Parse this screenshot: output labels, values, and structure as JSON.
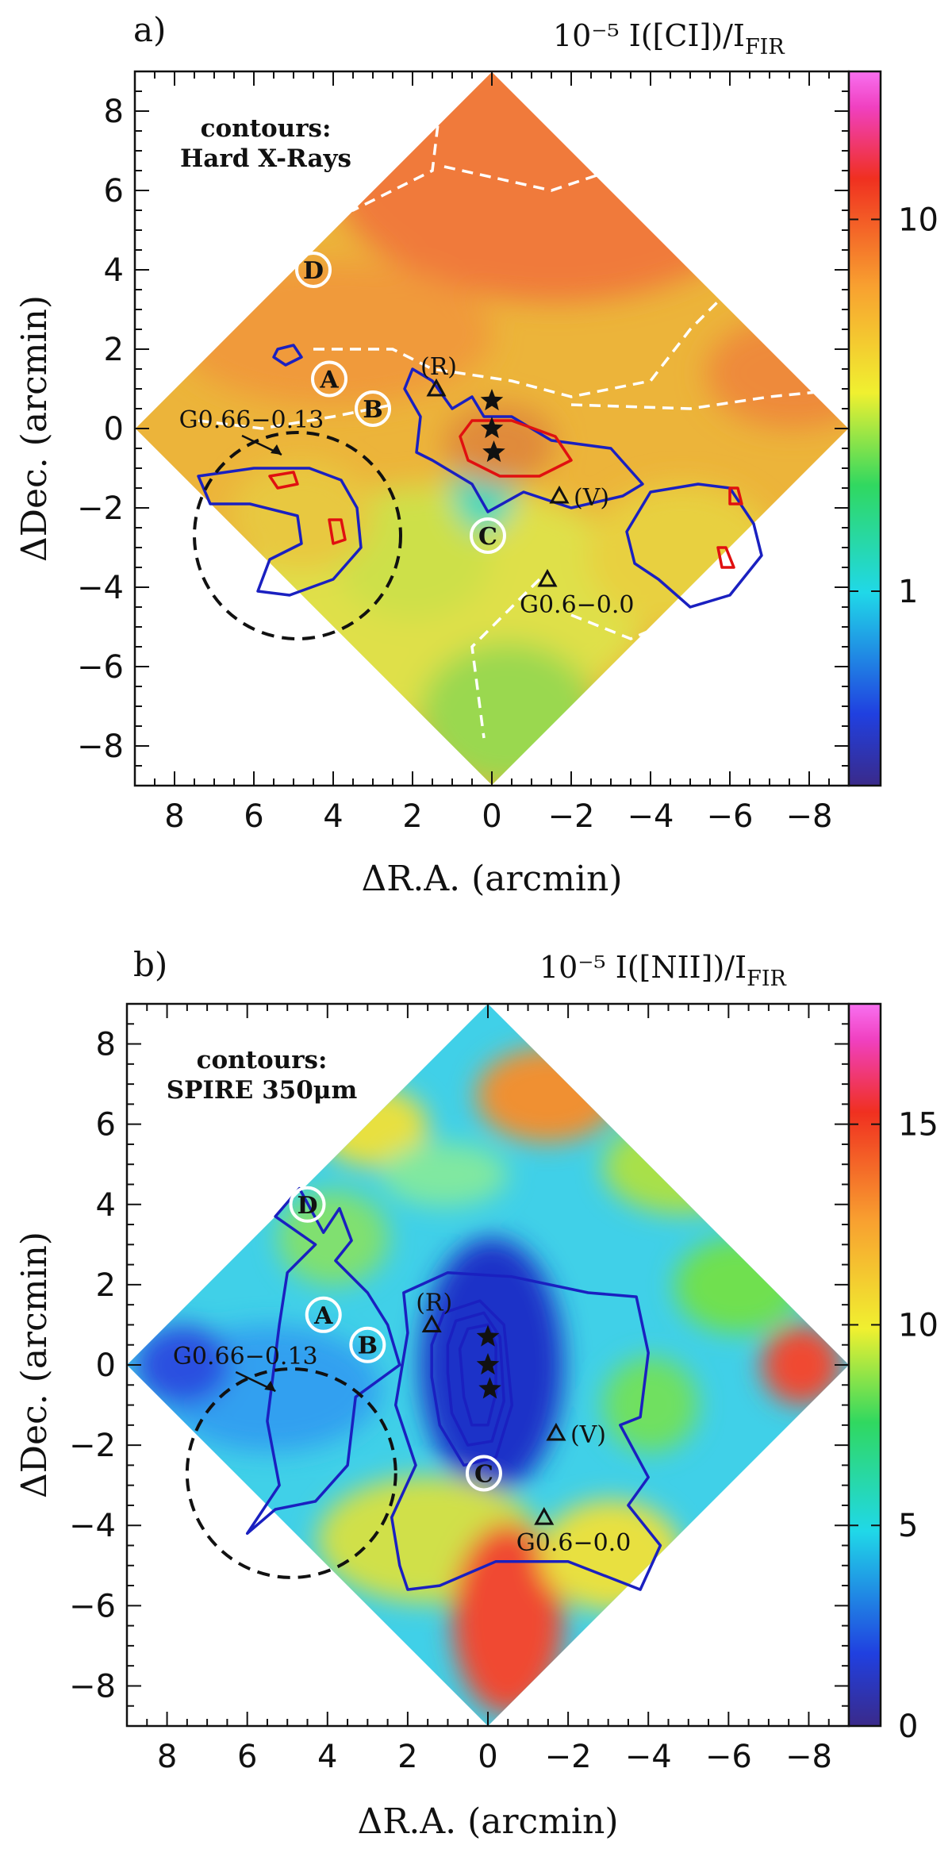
{
  "chart_data": [
    {
      "type": "heatmap",
      "panel_label": "a)",
      "colorbar_title": "10⁻⁵ I([CI])/I",
      "colorbar_title_sub": "FIR",
      "colorbar_scale": "log",
      "colorbar_range": [
        0.3,
        25
      ],
      "colorbar_ticks": [
        1,
        10
      ],
      "colorbar_tick_labels": [
        "1",
        "10"
      ],
      "xlabel": "ΔR.A. (arcmin)",
      "ylabel": "ΔDec. (arcmin)",
      "xlim": [
        9,
        -9
      ],
      "ylim": [
        -9,
        9
      ],
      "xticks": [
        8,
        6,
        4,
        2,
        0,
        -2,
        -4,
        -6,
        -8
      ],
      "xtick_labels": [
        "8",
        "6",
        "4",
        "2",
        "0",
        "−2",
        "−4",
        "−6",
        "−8"
      ],
      "yticks": [
        -8,
        -6,
        -4,
        -2,
        0,
        2,
        4,
        6,
        8
      ],
      "ytick_labels": [
        "−8",
        "−6",
        "−4",
        "−2",
        "0",
        "2",
        "4",
        "6",
        "8"
      ],
      "map_extent": {
        "center": [
          0,
          0
        ],
        "half_diagonal_arcmin": 9
      },
      "contour_note_line1": "contours:",
      "contour_note_line2": "Hard X-Rays",
      "circled_positions": [
        {
          "label": "D",
          "x": 4.5,
          "y": 4.0
        },
        {
          "label": "A",
          "x": 4.1,
          "y": 1.25
        },
        {
          "label": "B",
          "x": 3.0,
          "y": 0.5
        },
        {
          "label": "C",
          "x": 0.1,
          "y": -2.7
        }
      ],
      "stars": [
        {
          "x": 0.0,
          "y": 0.7
        },
        {
          "x": 0.0,
          "y": 0.0
        },
        {
          "x": -0.05,
          "y": -0.6
        }
      ],
      "triangles": [
        {
          "label": "(R)",
          "x": 1.4,
          "y": 1.0
        },
        {
          "label": "(V)",
          "x": -1.7,
          "y": -1.7
        },
        {
          "label": "G0.6−0.0",
          "x": -1.4,
          "y": -3.8
        }
      ],
      "circle_region": {
        "label": "G0.66−0.13",
        "center": [
          4.9,
          -2.7
        ],
        "radius_arcmin": 2.6
      },
      "blue_contours": [
        [
          [
            2.0,
            1.5
          ],
          [
            1.5,
            1.2
          ],
          [
            1.0,
            0.5
          ],
          [
            0.5,
            0.8
          ],
          [
            0.2,
            0.3
          ],
          [
            -0.5,
            0.3
          ],
          [
            -1.5,
            -0.3
          ],
          [
            -3.0,
            -0.5
          ],
          [
            -3.8,
            -1.4
          ],
          [
            -3.3,
            -1.7
          ],
          [
            -2.0,
            -2.0
          ],
          [
            -0.8,
            -1.6
          ],
          [
            0.1,
            -2.1
          ],
          [
            0.5,
            -1.4
          ],
          [
            1.5,
            -0.8
          ],
          [
            1.9,
            -0.6
          ],
          [
            1.8,
            0.3
          ],
          [
            2.2,
            1.0
          ]
        ],
        [
          [
            7.4,
            -1.2
          ],
          [
            6.0,
            -1.0
          ],
          [
            4.6,
            -1.0
          ],
          [
            3.8,
            -1.3
          ],
          [
            3.4,
            -2.0
          ],
          [
            3.3,
            -3.0
          ],
          [
            4.0,
            -3.8
          ],
          [
            5.1,
            -4.2
          ],
          [
            5.9,
            -4.1
          ],
          [
            5.6,
            -3.3
          ],
          [
            4.8,
            -2.9
          ],
          [
            4.9,
            -2.2
          ],
          [
            6.1,
            -1.9
          ],
          [
            7.1,
            -1.9
          ]
        ],
        [
          [
            -3.4,
            -2.6
          ],
          [
            -4.0,
            -1.6
          ],
          [
            -5.2,
            -1.4
          ],
          [
            -6.0,
            -1.5
          ],
          [
            -6.6,
            -2.4
          ],
          [
            -6.8,
            -3.2
          ],
          [
            -6.0,
            -4.2
          ],
          [
            -5.0,
            -4.5
          ],
          [
            -4.2,
            -3.8
          ],
          [
            -3.6,
            -3.4
          ]
        ],
        [
          [
            5.4,
            2.0
          ],
          [
            5.0,
            2.1
          ],
          [
            4.8,
            1.8
          ],
          [
            5.2,
            1.6
          ],
          [
            5.5,
            1.8
          ]
        ]
      ],
      "red_contours": [
        [
          [
            0.5,
            0.2
          ],
          [
            -0.5,
            0.2
          ],
          [
            -1.6,
            -0.2
          ],
          [
            -2.0,
            -0.8
          ],
          [
            -1.2,
            -1.2
          ],
          [
            -0.2,
            -1.2
          ],
          [
            0.6,
            -0.8
          ],
          [
            0.8,
            -0.2
          ]
        ],
        [
          [
            5.6,
            -1.2
          ],
          [
            5.0,
            -1.1
          ],
          [
            4.9,
            -1.4
          ],
          [
            5.4,
            -1.5
          ]
        ],
        [
          [
            4.1,
            -2.3
          ],
          [
            3.8,
            -2.3
          ],
          [
            3.7,
            -2.8
          ],
          [
            4.0,
            -2.9
          ]
        ],
        [
          [
            -6.0,
            -1.5
          ],
          [
            -6.2,
            -1.5
          ],
          [
            -6.3,
            -1.9
          ],
          [
            -6.0,
            -1.9
          ]
        ],
        [
          [
            -5.7,
            -3.0
          ],
          [
            -5.9,
            -3.0
          ],
          [
            -6.1,
            -3.5
          ],
          [
            -5.8,
            -3.5
          ]
        ]
      ],
      "white_dashed_boundaries": [
        [
          [
            1.2,
            9.0
          ],
          [
            1.5,
            6.5
          ],
          [
            3.5,
            5.5
          ],
          [
            6.0,
            5.0
          ]
        ],
        [
          [
            1.2,
            6.6
          ],
          [
            -1.5,
            6.0
          ],
          [
            -3.0,
            6.5
          ],
          [
            -4.0,
            8.0
          ]
        ],
        [
          [
            4.5,
            2.0
          ],
          [
            2.5,
            2.0
          ],
          [
            1.5,
            1.5
          ],
          [
            -0.5,
            1.2
          ],
          [
            -2.0,
            0.8
          ],
          [
            -4.0,
            1.2
          ],
          [
            -5.0,
            2.5
          ],
          [
            -6.0,
            3.5
          ]
        ],
        [
          [
            -2.0,
            0.6
          ],
          [
            -5.0,
            0.5
          ],
          [
            -7.0,
            0.8
          ],
          [
            -9.0,
            1.0
          ]
        ],
        [
          [
            7.4,
            0.2
          ],
          [
            5.8,
            0.0
          ],
          [
            4.0,
            0.3
          ],
          [
            2.5,
            0.6
          ]
        ],
        [
          [
            -1.2,
            -3.8
          ],
          [
            -0.5,
            -4.5
          ],
          [
            0.5,
            -5.5
          ],
          [
            0.2,
            -7.8
          ]
        ],
        [
          [
            -2.0,
            -4.7
          ],
          [
            -3.5,
            -5.3
          ],
          [
            -4.2,
            -5.0
          ]
        ]
      ]
    },
    {
      "type": "heatmap",
      "panel_label": "b)",
      "colorbar_title": "10⁻⁵ I([NII])/I",
      "colorbar_title_sub": "FIR",
      "colorbar_scale": "linear",
      "colorbar_range": [
        0,
        18
      ],
      "colorbar_ticks": [
        0,
        5,
        10,
        15
      ],
      "colorbar_tick_labels": [
        "0",
        "5",
        "10",
        "15"
      ],
      "xlabel": "ΔR.A. (arcmin)",
      "ylabel": "ΔDec. (arcmin)",
      "xlim": [
        9,
        -9
      ],
      "ylim": [
        -9,
        9
      ],
      "xticks": [
        8,
        6,
        4,
        2,
        0,
        -2,
        -4,
        -6,
        -8
      ],
      "xtick_labels": [
        "8",
        "6",
        "4",
        "2",
        "0",
        "−2",
        "−4",
        "−6",
        "−8"
      ],
      "yticks": [
        -8,
        -6,
        -4,
        -2,
        0,
        2,
        4,
        6,
        8
      ],
      "ytick_labels": [
        "−8",
        "−6",
        "−4",
        "−2",
        "0",
        "2",
        "4",
        "6",
        "8"
      ],
      "map_extent": {
        "center": [
          0,
          0
        ],
        "half_diagonal_arcmin": 9
      },
      "contour_note_line1": "contours:",
      "contour_note_line2": "SPIRE 350μm",
      "circled_positions": [
        {
          "label": "D",
          "x": 4.5,
          "y": 4.0
        },
        {
          "label": "A",
          "x": 4.1,
          "y": 1.25
        },
        {
          "label": "B",
          "x": 3.0,
          "y": 0.5
        },
        {
          "label": "C",
          "x": 0.1,
          "y": -2.7
        }
      ],
      "stars": [
        {
          "x": 0.0,
          "y": 0.7
        },
        {
          "x": 0.0,
          "y": 0.0
        },
        {
          "x": -0.05,
          "y": -0.6
        }
      ],
      "triangles": [
        {
          "label": "(R)",
          "x": 1.4,
          "y": 1.0
        },
        {
          "label": "(V)",
          "x": -1.7,
          "y": -1.7
        },
        {
          "label": "G0.6−0.0",
          "x": -1.4,
          "y": -3.8
        }
      ],
      "circle_region": {
        "label": "G0.66−0.13",
        "center": [
          4.9,
          -2.7
        ],
        "radius_arcmin": 2.6
      },
      "blue_contours": [
        [
          [
            6.0,
            -4.2
          ],
          [
            5.2,
            -3.0
          ],
          [
            5.5,
            -1.4
          ],
          [
            5.2,
            1.0
          ],
          [
            5.0,
            2.3
          ],
          [
            4.3,
            3.0
          ],
          [
            5.3,
            3.7
          ],
          [
            4.7,
            4.4
          ],
          [
            4.1,
            3.3
          ],
          [
            3.7,
            3.9
          ],
          [
            3.4,
            3.1
          ],
          [
            3.8,
            2.6
          ],
          [
            3.0,
            1.8
          ],
          [
            2.5,
            1.0
          ],
          [
            2.2,
            0.0
          ],
          [
            3.3,
            -0.8
          ],
          [
            3.5,
            -2.5
          ],
          [
            4.3,
            -3.4
          ],
          [
            5.3,
            -3.6
          ]
        ],
        [
          [
            2.1,
            1.8
          ],
          [
            1.0,
            2.3
          ],
          [
            -0.6,
            2.2
          ],
          [
            -2.5,
            1.8
          ],
          [
            -3.7,
            1.7
          ],
          [
            -4.0,
            0.3
          ],
          [
            -3.8,
            -1.3
          ],
          [
            -3.3,
            -1.5
          ],
          [
            -4.0,
            -2.8
          ],
          [
            -3.5,
            -3.5
          ],
          [
            -4.3,
            -4.5
          ],
          [
            -3.8,
            -5.6
          ],
          [
            -2.0,
            -4.9
          ],
          [
            -0.2,
            -4.9
          ],
          [
            1.2,
            -5.5
          ],
          [
            2.0,
            -5.6
          ],
          [
            2.2,
            -5.0
          ],
          [
            2.4,
            -3.8
          ],
          [
            1.8,
            -2.5
          ],
          [
            2.3,
            -1.0
          ],
          [
            2.0,
            0.8
          ]
        ],
        [
          [
            1.4,
            0.5
          ],
          [
            1.1,
            1.3
          ],
          [
            0.2,
            1.6
          ],
          [
            -0.4,
            1.0
          ],
          [
            -0.6,
            -1.0
          ],
          [
            -0.2,
            -2.3
          ],
          [
            0.6,
            -2.5
          ],
          [
            1.2,
            -1.5
          ],
          [
            1.4,
            -0.3
          ]
        ],
        [
          [
            1.0,
            0.5
          ],
          [
            0.8,
            1.1
          ],
          [
            0.1,
            1.3
          ],
          [
            -0.3,
            0.7
          ],
          [
            -0.4,
            -0.9
          ],
          [
            -0.1,
            -1.9
          ],
          [
            0.5,
            -2.0
          ],
          [
            0.9,
            -1.2
          ],
          [
            1.0,
            -0.2
          ]
        ],
        [
          [
            0.7,
            0.4
          ],
          [
            0.5,
            0.9
          ],
          [
            0.0,
            1.0
          ],
          [
            -0.2,
            0.5
          ],
          [
            -0.2,
            -0.7
          ],
          [
            0.0,
            -1.5
          ],
          [
            0.4,
            -1.5
          ],
          [
            0.6,
            -0.8
          ]
        ]
      ],
      "red_contours": [],
      "white_dashed_boundaries": []
    }
  ]
}
